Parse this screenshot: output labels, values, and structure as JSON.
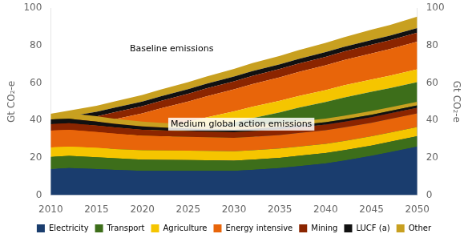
{
  "chart_data": {
    "type": "area",
    "stacked": true,
    "x": [
      2010,
      2012,
      2015,
      2017,
      2020,
      2022,
      2025,
      2027,
      2030,
      2032,
      2035,
      2037,
      2040,
      2042,
      2045,
      2047,
      2050
    ],
    "series": [
      {
        "name": "Electricity",
        "color": "#1a3d6e",
        "values": [
          14.0,
          15.0,
          16.5,
          18.0,
          20.0,
          22.0,
          24.5,
          26.5,
          29.0,
          31.0,
          33.5,
          35.5,
          38.0,
          40.0,
          42.5,
          44.0,
          46.5
        ],
        "mitigation_values": [
          14.0,
          14.5,
          14.0,
          13.5,
          13.0,
          13.0,
          13.0,
          13.0,
          13.0,
          13.5,
          14.5,
          15.5,
          17.0,
          18.5,
          21.0,
          23.0,
          26.0
        ]
      },
      {
        "name": "Transport",
        "color": "#3d6e1a",
        "values": [
          6.5,
          6.8,
          7.2,
          7.5,
          8.0,
          8.3,
          8.8,
          9.2,
          9.8,
          10.2,
          10.8,
          11.2,
          11.8,
          12.2,
          12.8,
          13.2,
          14.0
        ],
        "mitigation_values": [
          6.5,
          6.5,
          6.3,
          6.2,
          6.0,
          5.9,
          5.8,
          5.7,
          5.5,
          5.5,
          5.5,
          5.5,
          5.5,
          5.5,
          5.5,
          5.5,
          5.5
        ]
      },
      {
        "name": "Agriculture",
        "color": "#f5c500",
        "values": [
          5.0,
          5.0,
          5.2,
          5.3,
          5.5,
          5.6,
          5.8,
          5.9,
          6.0,
          6.1,
          6.2,
          6.3,
          6.4,
          6.5,
          6.6,
          6.7,
          6.8
        ],
        "mitigation_values": [
          5.0,
          5.0,
          5.0,
          5.0,
          5.0,
          5.0,
          5.0,
          5.0,
          5.0,
          5.0,
          5.0,
          5.0,
          5.0,
          5.0,
          5.0,
          5.0,
          5.0
        ]
      },
      {
        "name": "Energy intensive",
        "color": "#e8650a",
        "values": [
          9.0,
          9.2,
          9.5,
          9.8,
          10.2,
          10.5,
          11.0,
          11.3,
          11.8,
          12.1,
          12.5,
          12.8,
          13.2,
          13.5,
          13.9,
          14.2,
          14.8
        ],
        "mitigation_values": [
          9.0,
          9.0,
          8.5,
          8.2,
          7.8,
          7.6,
          7.4,
          7.3,
          7.2,
          7.2,
          7.2,
          7.2,
          7.2,
          7.2,
          7.2,
          7.2,
          7.2
        ]
      },
      {
        "name": "Mining",
        "color": "#8b2500",
        "values": [
          3.5,
          3.6,
          3.7,
          3.8,
          3.9,
          4.0,
          4.1,
          4.2,
          4.3,
          4.4,
          4.5,
          4.5,
          4.6,
          4.6,
          4.7,
          4.7,
          4.8
        ],
        "mitigation_values": [
          3.5,
          3.5,
          3.4,
          3.3,
          3.2,
          3.1,
          3.0,
          3.0,
          3.0,
          3.0,
          3.0,
          3.0,
          3.0,
          3.0,
          3.0,
          3.0,
          3.0
        ]
      },
      {
        "name": "LUCF (a)",
        "color": "#111111",
        "values": [
          2.5,
          2.5,
          2.5,
          2.5,
          2.5,
          2.5,
          2.5,
          2.5,
          2.5,
          2.5,
          2.5,
          2.5,
          2.5,
          2.5,
          2.5,
          2.5,
          2.5
        ],
        "mitigation_values": [
          2.5,
          2.4,
          2.2,
          2.0,
          1.8,
          1.7,
          1.5,
          1.4,
          1.3,
          1.3,
          1.3,
          1.3,
          1.3,
          1.3,
          1.3,
          1.3,
          1.3
        ]
      },
      {
        "name": "Other",
        "color": "#c8a020",
        "values": [
          3.0,
          3.1,
          3.2,
          3.3,
          3.5,
          3.6,
          3.8,
          3.9,
          4.1,
          4.3,
          4.5,
          4.7,
          5.0,
          5.2,
          5.5,
          5.7,
          6.1
        ],
        "mitigation_values": [
          3.0,
          3.0,
          2.8,
          2.7,
          2.5,
          2.4,
          2.3,
          2.2,
          2.0,
          2.0,
          2.0,
          2.0,
          2.0,
          2.0,
          2.0,
          2.0,
          2.0
        ]
      }
    ],
    "xlim": [
      2010,
      2050
    ],
    "xticks": [
      2010,
      2015,
      2020,
      2025,
      2030,
      2035,
      2040,
      2045,
      2050
    ],
    "ylim": [
      0,
      100
    ],
    "yticks": [
      0,
      20,
      40,
      60,
      80,
      100
    ],
    "y2lim": [
      0,
      100
    ],
    "y2ticks": [
      0,
      20,
      40,
      60,
      80,
      100
    ],
    "ylabel": "Gt CO₂-e",
    "y2label": "Gt CO₂-e",
    "annotations": [
      "Baseline emissions",
      "Medium global action emissions"
    ],
    "grid": false,
    "legend": "bottom"
  }
}
